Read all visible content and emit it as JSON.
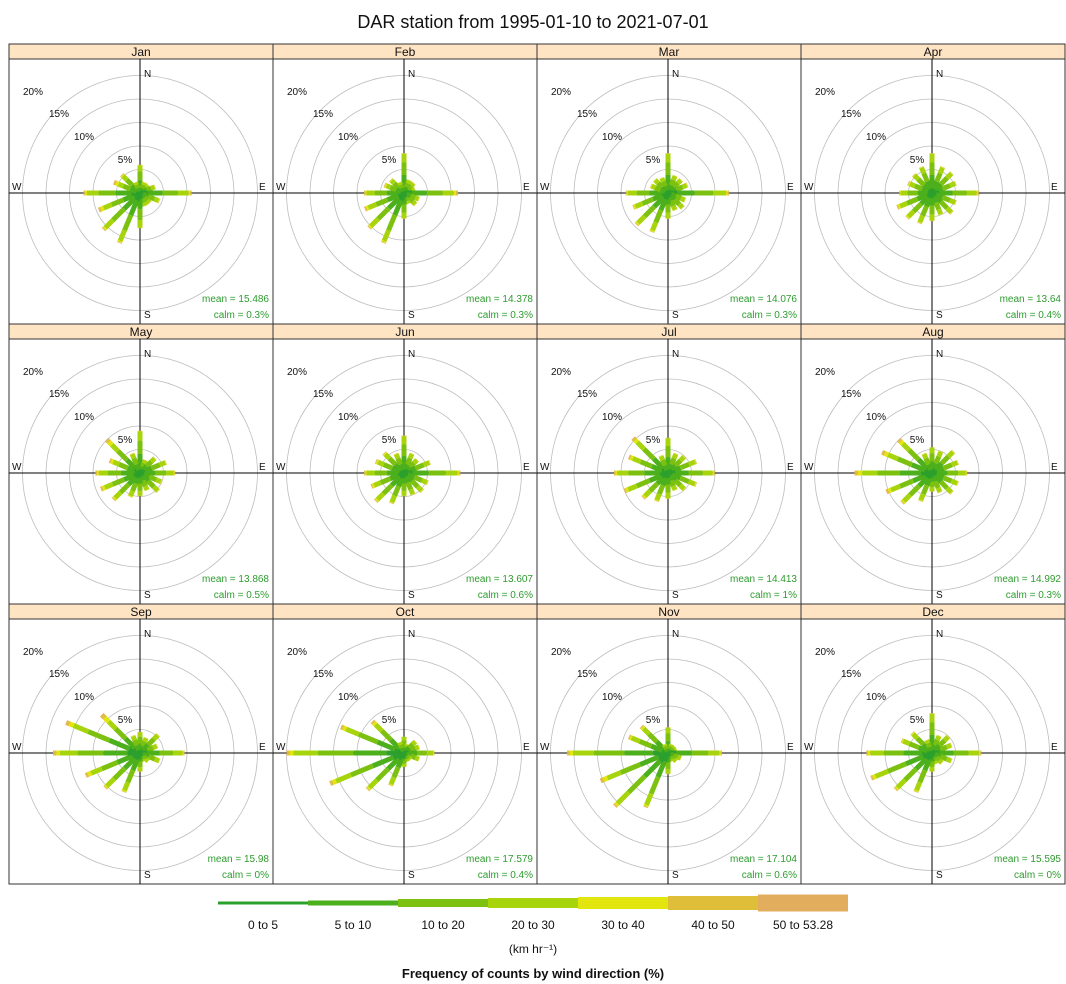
{
  "chart_data": {
    "type": "windrose",
    "title": "DAR station from 1995-01-10 to 2021-07-01",
    "direction_labels": [
      "N",
      "E",
      "S",
      "W"
    ],
    "ring_labels": [
      "5%",
      "10%",
      "15%",
      "20%"
    ],
    "rings_percent": [
      5,
      10,
      15,
      20,
      25
    ],
    "directions_deg": [
      0,
      22.5,
      45,
      67.5,
      90,
      112.5,
      135,
      157.5,
      180,
      202.5,
      225,
      247.5,
      270,
      292.5,
      315,
      337.5
    ],
    "bins": [
      "0 to 5",
      "5 to 10",
      "10 to 20",
      "20 to 30",
      "30 to 40",
      "40 to 50",
      "50 to 53.28"
    ],
    "bin_colors": [
      "#2ca02c",
      "#4caf1c",
      "#7cc10f",
      "#a8d40c",
      "#e3e50e",
      "#dfbe3a",
      "#e3ad5e"
    ],
    "units_label": "(km hr⁻¹)",
    "legend_title": "Frequency of counts by wind direction (%)",
    "panels": [
      {
        "month": "Jan",
        "mean": "mean = 15.486",
        "calm": "calm = 0.3%",
        "freqs": [
          6.0,
          2.5,
          2.5,
          3.5,
          11.0,
          4.5,
          3.0,
          3.0,
          7.5,
          11.5,
          11.0,
          9.5,
          12.0,
          6.0,
          5.5,
          2.5
        ],
        "tip": [
          0.02,
          0.05,
          0.06,
          0.05,
          0.06,
          0.05,
          0.04,
          0.03,
          0.02,
          0.04,
          0.05,
          0.12,
          0.06,
          0.18,
          0.08,
          0.03
        ]
      },
      {
        "month": "Feb",
        "mean": "mean = 14.378",
        "calm": "calm = 0.3%",
        "freqs": [
          8.5,
          3.0,
          3.0,
          2.5,
          11.5,
          3.5,
          3.5,
          2.5,
          5.5,
          11.5,
          10.5,
          9.0,
          8.5,
          4.5,
          4.0,
          2.5
        ],
        "tip": [
          0.02,
          0.04,
          0.05,
          0.04,
          0.08,
          0.04,
          0.03,
          0.03,
          0.03,
          0.04,
          0.05,
          0.09,
          0.06,
          0.1,
          0.06,
          0.03
        ]
      },
      {
        "month": "Mar",
        "mean": "mean = 14.076",
        "calm": "calm = 0.3%",
        "freqs": [
          8.5,
          4.0,
          4.0,
          4.5,
          13.0,
          4.0,
          4.5,
          4.0,
          5.5,
          9.0,
          9.5,
          8.0,
          9.0,
          4.0,
          4.0,
          3.5
        ],
        "tip": [
          0.02,
          0.03,
          0.04,
          0.04,
          0.05,
          0.04,
          0.03,
          0.03,
          0.03,
          0.04,
          0.05,
          0.06,
          0.05,
          0.06,
          0.04,
          0.03
        ]
      },
      {
        "month": "Apr",
        "mean": "mean = 13.64",
        "calm": "calm = 0.4%",
        "freqs": [
          8.5,
          6.0,
          6.0,
          5.5,
          10.0,
          5.5,
          6.0,
          5.0,
          6.0,
          7.0,
          7.5,
          8.0,
          7.0,
          5.5,
          5.5,
          6.0
        ],
        "tip": [
          0.02,
          0.03,
          0.03,
          0.03,
          0.05,
          0.03,
          0.03,
          0.03,
          0.03,
          0.04,
          0.05,
          0.08,
          0.05,
          0.08,
          0.04,
          0.03
        ]
      },
      {
        "month": "May",
        "mean": "mean = 13.868",
        "calm": "calm = 0.5%",
        "freqs": [
          9.0,
          3.0,
          4.5,
          6.0,
          7.5,
          5.0,
          5.5,
          4.0,
          5.0,
          5.5,
          8.0,
          9.0,
          9.5,
          7.0,
          10.0,
          4.5
        ],
        "tip": [
          0.02,
          0.03,
          0.03,
          0.03,
          0.05,
          0.04,
          0.03,
          0.03,
          0.03,
          0.04,
          0.06,
          0.1,
          0.08,
          0.12,
          0.15,
          0.04
        ]
      },
      {
        "month": "Jun",
        "mean": "mean = 13.607",
        "calm": "calm = 0.6%",
        "freqs": [
          8.0,
          4.5,
          4.0,
          6.0,
          12.0,
          5.5,
          5.5,
          5.0,
          5.0,
          7.0,
          8.5,
          7.5,
          8.5,
          6.5,
          6.0,
          4.5
        ],
        "tip": [
          0.02,
          0.03,
          0.03,
          0.03,
          0.05,
          0.04,
          0.04,
          0.03,
          0.03,
          0.04,
          0.06,
          0.08,
          0.06,
          0.08,
          0.06,
          0.04
        ]
      },
      {
        "month": "Jul",
        "mean": "mean = 14.413",
        "calm": "calm = 1%",
        "freqs": [
          7.5,
          4.5,
          5.0,
          6.5,
          10.0,
          6.5,
          5.0,
          4.0,
          5.5,
          6.5,
          7.5,
          10.0,
          11.5,
          9.0,
          10.5,
          4.0
        ],
        "tip": [
          0.02,
          0.04,
          0.04,
          0.04,
          0.05,
          0.05,
          0.04,
          0.03,
          0.03,
          0.04,
          0.07,
          0.08,
          0.06,
          0.1,
          0.12,
          0.04
        ]
      },
      {
        "month": "Aug",
        "mean": "mean = 14.992",
        "calm": "calm = 0.3%",
        "freqs": [
          5.5,
          5.0,
          6.5,
          6.0,
          7.5,
          6.0,
          6.0,
          4.5,
          4.0,
          6.5,
          9.0,
          10.5,
          16.5,
          11.5,
          10.0,
          4.5
        ],
        "tip": [
          0.02,
          0.03,
          0.03,
          0.03,
          0.05,
          0.04,
          0.03,
          0.03,
          0.03,
          0.04,
          0.06,
          0.1,
          0.1,
          0.12,
          0.12,
          0.04
        ]
      },
      {
        "month": "Sep",
        "mean": "mean = 15.98",
        "calm": "calm = 0%",
        "freqs": [
          4.5,
          3.5,
          5.5,
          4.0,
          9.5,
          4.5,
          2.5,
          2.0,
          4.0,
          9.0,
          10.5,
          12.5,
          18.5,
          17.0,
          11.5,
          4.0
        ],
        "tip": [
          0.02,
          0.03,
          0.03,
          0.03,
          0.05,
          0.03,
          0.03,
          0.03,
          0.03,
          0.04,
          0.05,
          0.1,
          0.08,
          0.1,
          0.18,
          0.04
        ]
      },
      {
        "month": "Oct",
        "mean": "mean = 17.579",
        "calm": "calm = 0.4%",
        "freqs": [
          3.5,
          2.0,
          3.5,
          3.5,
          6.5,
          3.5,
          2.0,
          2.0,
          3.0,
          7.5,
          11.0,
          17.0,
          25.0,
          14.5,
          9.5,
          2.5
        ],
        "tip": [
          0.02,
          0.03,
          0.03,
          0.03,
          0.05,
          0.03,
          0.03,
          0.03,
          0.03,
          0.04,
          0.05,
          0.08,
          0.06,
          0.08,
          0.1,
          0.03
        ]
      },
      {
        "month": "Nov",
        "mean": "mean = 17.104",
        "calm": "calm = 0.6%",
        "freqs": [
          5.5,
          2.0,
          2.0,
          2.0,
          11.5,
          3.0,
          2.5,
          2.0,
          4.5,
          12.5,
          16.0,
          15.5,
          21.5,
          9.0,
          8.0,
          2.0
        ],
        "tip": [
          0.02,
          0.03,
          0.03,
          0.03,
          0.05,
          0.03,
          0.03,
          0.03,
          0.03,
          0.04,
          0.05,
          0.1,
          0.06,
          0.07,
          0.08,
          0.03
        ]
      },
      {
        "month": "Dec",
        "mean": "mean = 15.595",
        "calm": "calm = 0%",
        "freqs": [
          8.5,
          4.0,
          5.0,
          4.5,
          10.5,
          4.5,
          3.0,
          2.5,
          4.0,
          9.0,
          11.0,
          14.0,
          14.0,
          7.0,
          6.0,
          3.0
        ],
        "tip": [
          0.02,
          0.03,
          0.03,
          0.03,
          0.05,
          0.03,
          0.03,
          0.03,
          0.03,
          0.04,
          0.05,
          0.07,
          0.06,
          0.05,
          0.05,
          0.03
        ]
      }
    ]
  }
}
